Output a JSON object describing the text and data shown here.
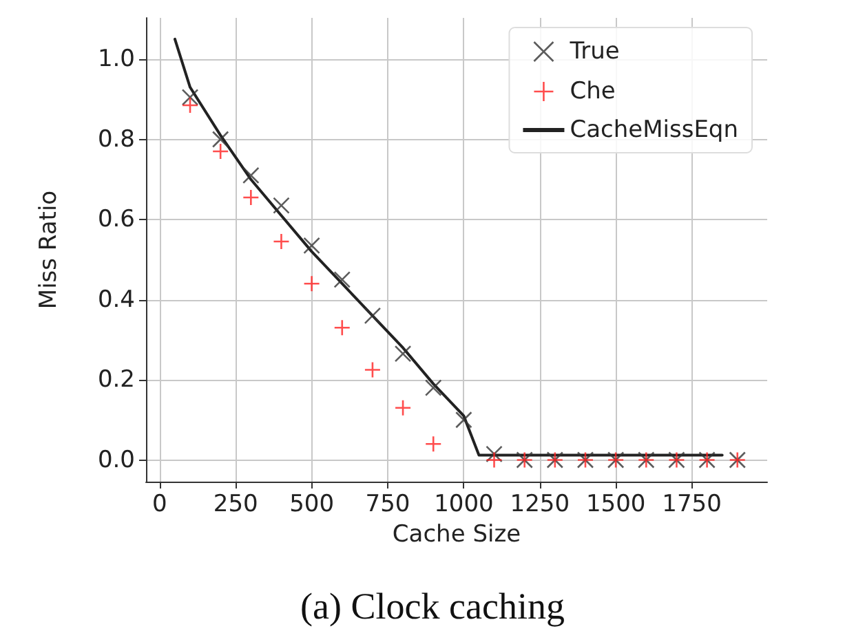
{
  "chart_data": {
    "type": "scatter",
    "xlabel": "Cache Size",
    "ylabel": "Miss Ratio",
    "annotations": [
      "(a) Clock caching"
    ],
    "xlim": [
      -45,
      1998
    ],
    "ylim": [
      -0.054,
      1.103
    ],
    "xticks": [
      0,
      250,
      500,
      750,
      1000,
      1250,
      1500,
      1750
    ],
    "yticks": [
      {
        "value": 0,
        "label": "0.0"
      },
      {
        "value": 0.2,
        "label": "0.2"
      },
      {
        "value": 0.4,
        "label": "0.4"
      },
      {
        "value": 0.6,
        "label": "0.6"
      },
      {
        "value": 0.8,
        "label": "0.8"
      },
      {
        "value": 1,
        "label": "1.0"
      }
    ],
    "grid": true,
    "legend": "top right",
    "series": [
      {
        "name": "True",
        "color": "#333333",
        "marker": "cross",
        "x": [
          100,
          200,
          300,
          400,
          500,
          600,
          700,
          800,
          900,
          1000,
          1100,
          1200,
          1300,
          1400,
          1500,
          1600,
          1700,
          1800,
          1900
        ],
        "values": [
          0.905,
          0.8,
          0.71,
          0.635,
          0.535,
          0.45,
          0.36,
          0.265,
          0.18,
          0.1,
          0.015,
          0,
          0,
          0,
          0,
          0,
          0,
          0,
          0
        ]
      },
      {
        "name": "Che",
        "color": "#ff2020",
        "marker": "plus",
        "x": [
          100,
          200,
          300,
          400,
          500,
          600,
          700,
          800,
          900,
          1100,
          1200,
          1300,
          1400,
          1500,
          1600,
          1700,
          1800,
          1900
        ],
        "values": [
          0.885,
          0.77,
          0.655,
          0.545,
          0.44,
          0.33,
          0.225,
          0.13,
          0.04,
          0,
          0,
          0,
          0,
          0,
          0,
          0,
          0,
          0
        ]
      },
      {
        "name": "CacheMissEqn",
        "type": "line",
        "color": "#222222",
        "marker": "none",
        "line_style": "solid",
        "x": [
          50,
          100,
          200,
          300,
          400,
          500,
          600,
          700,
          800,
          900,
          1000,
          1050,
          1850
        ],
        "values": [
          1.05,
          0.93,
          0.81,
          0.7,
          0.61,
          0.52,
          0.44,
          0.36,
          0.28,
          0.19,
          0.11,
          0.012,
          0.012
        ]
      }
    ]
  }
}
